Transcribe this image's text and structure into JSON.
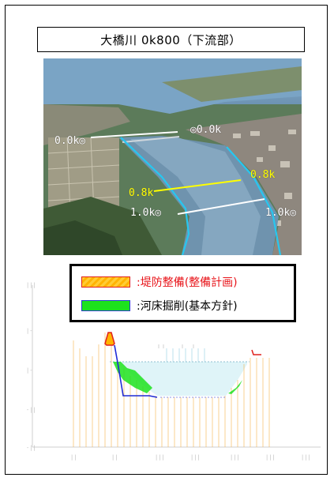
{
  "title": "大橋川 0k800（下流部）",
  "photo": {
    "labels": {
      "left_0k": "0.0k◎",
      "right_0k": "◎0.0k",
      "yellow_left": "0.8k",
      "yellow_right": "0.8k",
      "left_1k": "1.0k◎",
      "right_1k": "1.0k◎"
    }
  },
  "legend": {
    "levee": ":堤防整備(整備計画)",
    "riverbed": ":河床掘削(基本方針)"
  },
  "colors": {
    "levee_fill": "#ffb300",
    "levee_outline": "#e0211b",
    "excavation_fill": "#1de21d",
    "bed_line": "#1f2bd6",
    "water": "#dff4f8",
    "annotation_line_white": "#ffffff",
    "annotation_line_yellow": "#ffff00"
  }
}
